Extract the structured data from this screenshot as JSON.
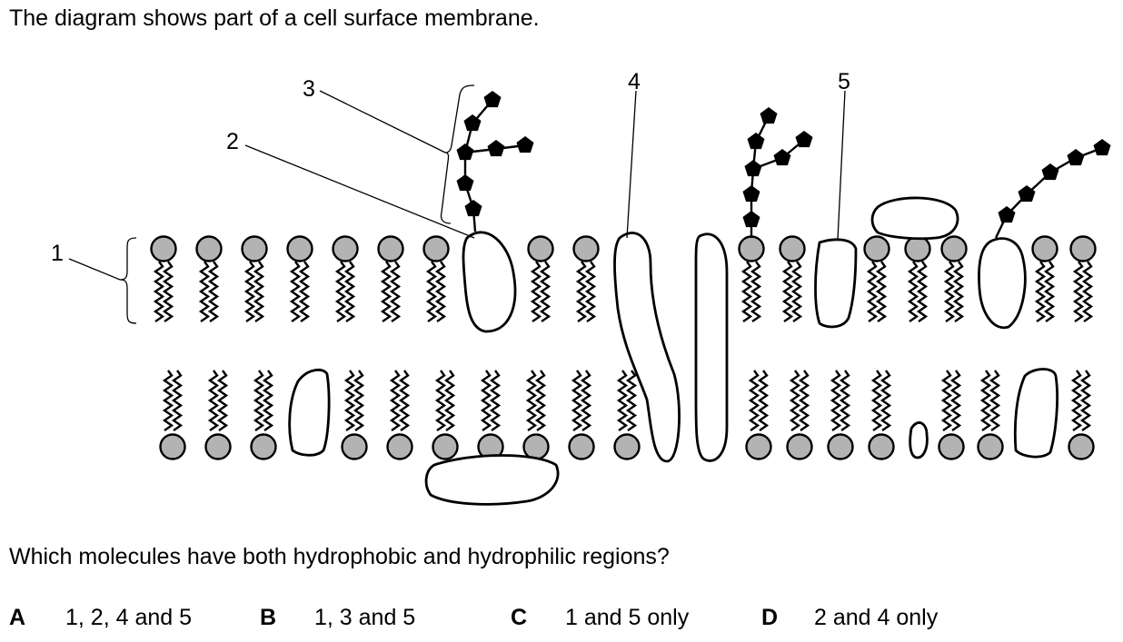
{
  "question": {
    "intro": "The diagram shows part of a cell surface membrane.",
    "prompt": "Which molecules have both hydrophobic and hydrophilic regions?"
  },
  "diagram": {
    "labels": [
      "1",
      "2",
      "3",
      "4",
      "5"
    ]
  },
  "options": [
    {
      "letter": "A",
      "text": "1, 2, 4 and 5"
    },
    {
      "letter": "B",
      "text": "1, 3 and 5"
    },
    {
      "letter": "C",
      "text": "1 and 5 only"
    },
    {
      "letter": "D",
      "text": "2 and 4 only"
    }
  ],
  "colors": {
    "phospholipid_head": "#b3b3b3",
    "outline": "#000000"
  }
}
